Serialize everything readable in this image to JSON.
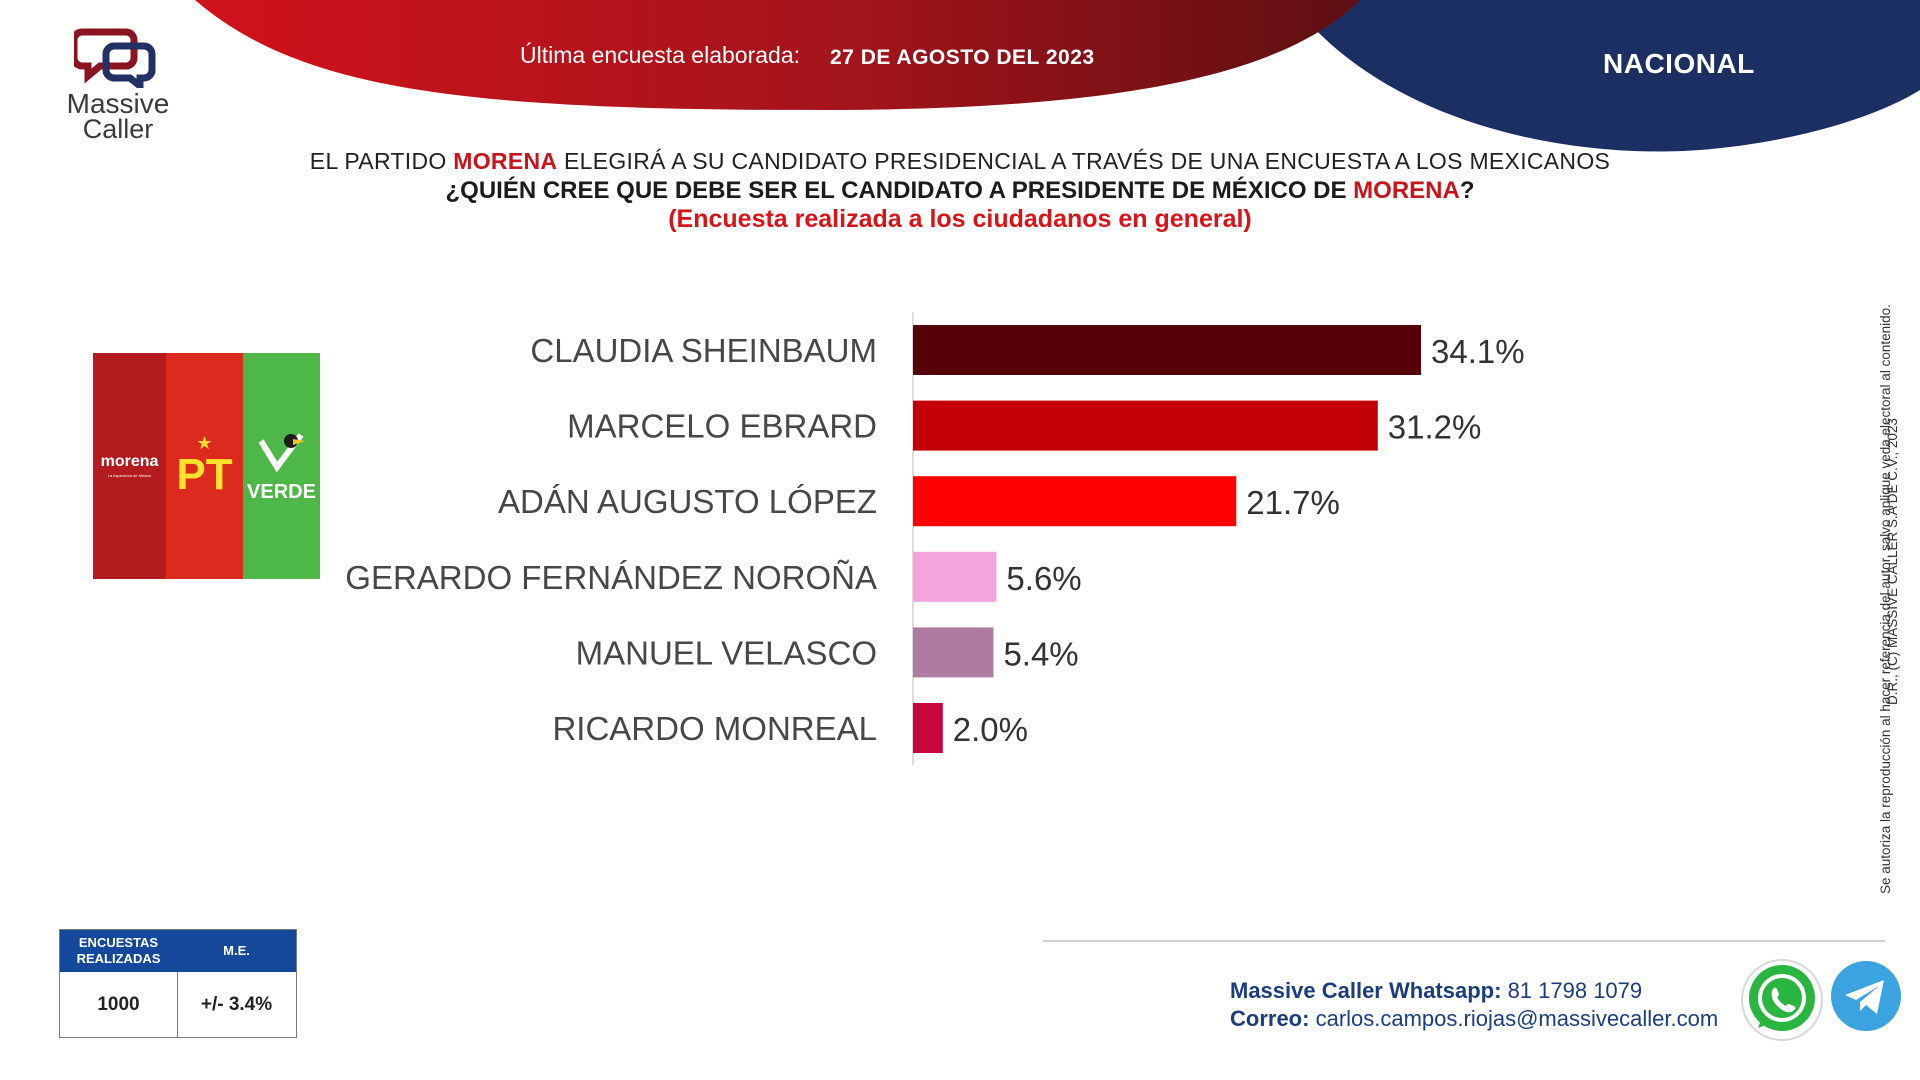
{
  "header": {
    "survey_label": "Última encuesta elaborada:",
    "survey_date": "27 DE AGOSTO DEL 2023",
    "scope": "NACIONAL"
  },
  "logo": {
    "line1": "Massive",
    "line2": "Caller"
  },
  "title": {
    "line1_pre": "EL PARTIDO ",
    "line1_party": "MORENA",
    "line1_post": " ELEGIRÁ A SU CANDIDATO PRESIDENCIAL A TRAVÉS DE UNA ENCUESTA A LOS MEXICANOS",
    "line2_pre": "¿QUIÉN CREE QUE DEBE SER EL CANDIDATO A PRESIDENTE DE MÉXICO DE ",
    "line2_party": "MORENA",
    "line2_post": "?",
    "line3": "(Encuesta realizada a los ciudadanos en general)"
  },
  "parties": {
    "morena": "morena",
    "morena_tagline": "La esperanza de México",
    "pt": "PT",
    "verde": "VERDE"
  },
  "chart_data": {
    "type": "bar",
    "orientation": "horizontal",
    "categories": [
      "CLAUDIA SHEINBAUM",
      "MARCELO EBRARD",
      "ADÁN AUGUSTO LÓPEZ",
      "GERARDO FERNÁNDEZ NOROÑA",
      "MANUEL VELASCO",
      "RICARDO MONREAL"
    ],
    "values": [
      34.1,
      31.2,
      21.7,
      5.6,
      5.4,
      2.0
    ],
    "value_labels": [
      "34.1%",
      "31.2%",
      "21.7%",
      "5.6%",
      "5.4%",
      "2.0%"
    ],
    "colors": [
      "#560007",
      "#c30007",
      "#ff0000",
      "#f4a4dc",
      "#b07ba0",
      "#c8063e"
    ],
    "xlim": [
      0,
      40
    ],
    "grid": false,
    "legend": "none"
  },
  "stats": {
    "head_surveys": "ENCUESTAS REALIZADAS",
    "head_me": "M.E.",
    "surveys": "1000",
    "me": "+/- 3.4%"
  },
  "contact": {
    "whatsapp_label": "Massive Caller Whatsapp:",
    "whatsapp_number": "81 1798 1079",
    "email_label": "Correo:",
    "email": "carlos.campos.riojas@massivecaller.com"
  },
  "copyright": {
    "line1": "D.R., (C) MASSIVE CALLER S.A DE C.V., 2023",
    "line2": "Se autoriza la reproducción al hacer referencia del autor, salvo aplique veda electoral al contenido."
  },
  "theme": {
    "brand_red": "#c8141b",
    "brand_blue": "#14489a",
    "navy": "#1b2f63"
  }
}
